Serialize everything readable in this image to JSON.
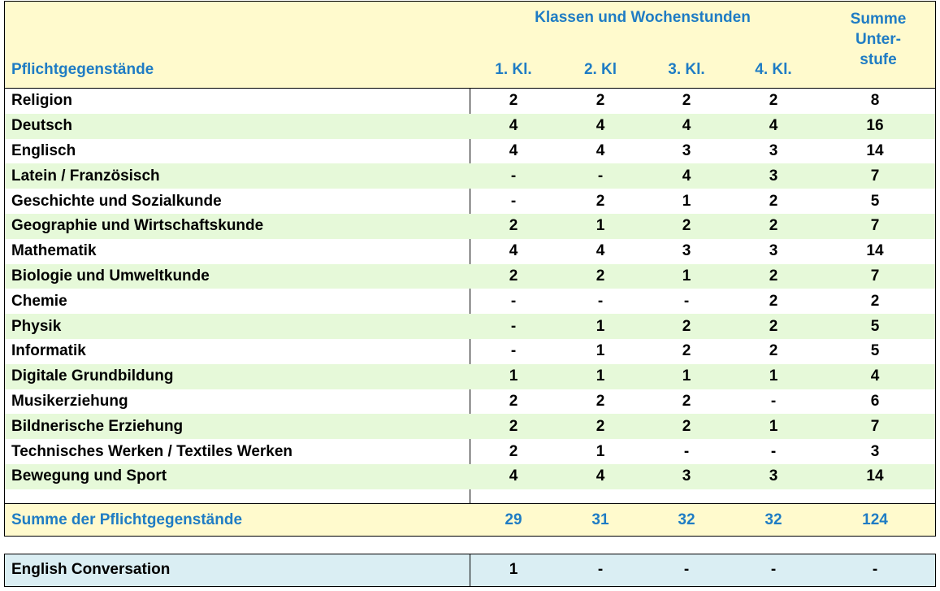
{
  "header": {
    "group_title": "Klassen und Wochenstunden",
    "sum_title_lines": [
      "Summe",
      "Unter-",
      "stufe"
    ],
    "subjects_label": "Pflichtgegenstände",
    "classes": [
      "1. Kl.",
      "2. Kl",
      "3. Kl.",
      "4. Kl."
    ]
  },
  "rows": [
    {
      "name": "Religion",
      "values": [
        "2",
        "2",
        "2",
        "2",
        "8"
      ]
    },
    {
      "name": "Deutsch",
      "values": [
        "4",
        "4",
        "4",
        "4",
        "16"
      ]
    },
    {
      "name": "Englisch",
      "values": [
        "4",
        "4",
        "3",
        "3",
        "14"
      ]
    },
    {
      "name": "Latein / Französisch",
      "values": [
        "-",
        "-",
        "4",
        "3",
        "7"
      ]
    },
    {
      "name": "Geschichte und Sozialkunde",
      "values": [
        "-",
        "2",
        "1",
        "2",
        "5"
      ]
    },
    {
      "name": "Geographie und Wirtschaftskunde",
      "values": [
        "2",
        "1",
        "2",
        "2",
        "7"
      ]
    },
    {
      "name": "Mathematik",
      "values": [
        "4",
        "4",
        "3",
        "3",
        "14"
      ]
    },
    {
      "name": "Biologie und Umweltkunde",
      "values": [
        "2",
        "2",
        "1",
        "2",
        "7"
      ]
    },
    {
      "name": "Chemie",
      "values": [
        "-",
        "-",
        "-",
        "2",
        "2"
      ]
    },
    {
      "name": "Physik",
      "values": [
        "-",
        "1",
        "2",
        "2",
        "5"
      ]
    },
    {
      "name": "Informatik",
      "values": [
        "-",
        "1",
        "2",
        "2",
        "5"
      ]
    },
    {
      "name": "Digitale Grundbildung",
      "values": [
        "1",
        "1",
        "1",
        "1",
        "4"
      ]
    },
    {
      "name": "Musikerziehung",
      "values": [
        "2",
        "2",
        "2",
        "-",
        "6"
      ]
    },
    {
      "name": "Bildnerische Erziehung",
      "values": [
        "2",
        "2",
        "2",
        "1",
        "7"
      ]
    },
    {
      "name": "Technisches Werken / Textiles Werken",
      "values": [
        "2",
        "1",
        "-",
        "-",
        "3"
      ]
    },
    {
      "name": "Bewegung und Sport",
      "values": [
        "4",
        "4",
        "3",
        "3",
        "14"
      ]
    }
  ],
  "total": {
    "name": "Summe der Pflichtgegenstände",
    "values": [
      "29",
      "31",
      "32",
      "32",
      "124"
    ]
  },
  "extra": {
    "name": "English Conversation",
    "values": [
      "1",
      "-",
      "-",
      "-",
      "-"
    ]
  },
  "colors": {
    "header_bg": "#fffacd",
    "alt_row_bg": "#e6f9d9",
    "extra_bg": "#daeef3",
    "accent_blue": "#1f7cc4"
  }
}
